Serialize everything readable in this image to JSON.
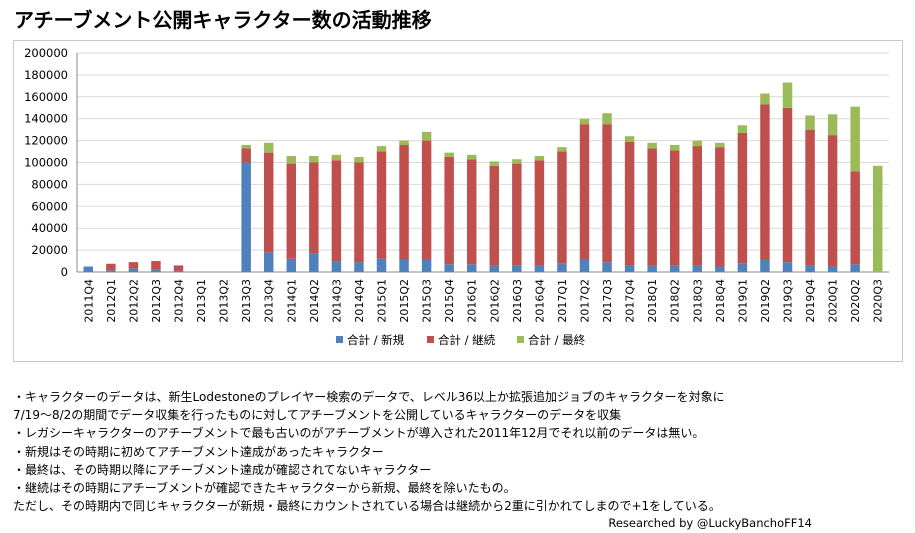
{
  "title": "アチーブメント公開キャラクター数の活動推移",
  "chart_data": {
    "type": "bar",
    "stacked": true,
    "title": "アチーブメント公開キャラクター数の活動推移",
    "xlabel": "",
    "ylabel": "",
    "ylim": [
      0,
      200000
    ],
    "yticks": [
      0,
      20000,
      40000,
      60000,
      80000,
      100000,
      120000,
      140000,
      160000,
      180000,
      200000
    ],
    "grid": true,
    "legend_position": "bottom",
    "categories": [
      "2011Q4",
      "2012Q1",
      "2012Q2",
      "2012Q3",
      "2012Q4",
      "2013Q1",
      "2013Q2",
      "2013Q3",
      "2013Q4",
      "2014Q1",
      "2014Q2",
      "2014Q3",
      "2014Q4",
      "2015Q1",
      "2015Q2",
      "2015Q3",
      "2015Q4",
      "2016Q1",
      "2016Q2",
      "2016Q3",
      "2016Q4",
      "2017Q1",
      "2017Q2",
      "2017Q3",
      "2017Q4",
      "2018Q1",
      "2018Q2",
      "2018Q3",
      "2018Q4",
      "2019Q1",
      "2019Q2",
      "2019Q3",
      "2019Q4",
      "2020Q1",
      "2020Q2",
      "2020Q3"
    ],
    "series": [
      {
        "name": "合計 / 新規",
        "color": "#4f81bd",
        "values": [
          5000,
          1500,
          3000,
          2000,
          1000,
          0,
          0,
          100000,
          18000,
          12000,
          17000,
          10000,
          9000,
          12000,
          11000,
          11000,
          7000,
          7000,
          6000,
          6000,
          6000,
          8000,
          11000,
          9000,
          6000,
          6000,
          6000,
          6000,
          5000,
          8000,
          11000,
          9000,
          6000,
          5000,
          7000,
          0
        ]
      },
      {
        "name": "合計 / 継続",
        "color": "#c0504d",
        "values": [
          0,
          6000,
          6000,
          8000,
          5000,
          0,
          0,
          13000,
          91000,
          87000,
          83000,
          92000,
          91000,
          98000,
          105000,
          109000,
          98000,
          96000,
          91000,
          93000,
          96000,
          102000,
          124000,
          126000,
          113000,
          107000,
          105000,
          109000,
          109000,
          119000,
          142000,
          141000,
          124000,
          120000,
          85000,
          0
        ]
      },
      {
        "name": "合計 / 最終",
        "color": "#9bbb59",
        "values": [
          0,
          0,
          0,
          0,
          0,
          0,
          0,
          3000,
          9000,
          7000,
          6000,
          5000,
          5000,
          5000,
          4000,
          8000,
          4000,
          4000,
          4000,
          4000,
          4000,
          4000,
          5000,
          10000,
          5000,
          5000,
          5000,
          5000,
          4000,
          7000,
          10000,
          23000,
          13000,
          19000,
          59000,
          97000
        ]
      }
    ]
  },
  "notes": [
    "・キャラクターのデータは、新生Lodestoneのプレイヤー検索のデータで、レベル36以上か拡張追加ジョブのキャラクターを対象に",
    "  7/19～8/2の期間でデータ収集を行ったものに対してアチーブメントを公開しているキャラクターのデータを収集",
    "・レガシーキャラクターのアチーブメントで最も古いのがアチーブメントが導入された2011年12月でそれ以前のデータは無い。",
    "・新規はその時期に初めてアチーブメント達成があったキャラクター",
    "・最終は、その時期以降にアチーブメント達成が確認されてないキャラクター",
    "・継続はその時期にアチーブメントが確認できたキャラクターから新規、最終を除いたもの。",
    "  ただし、その時期内で同じキャラクターが新規・最終にカウントされている場合は継続から2重に引かれてしまので+1をしている。"
  ],
  "credit": "Researched by @LuckyBanchoFF14"
}
